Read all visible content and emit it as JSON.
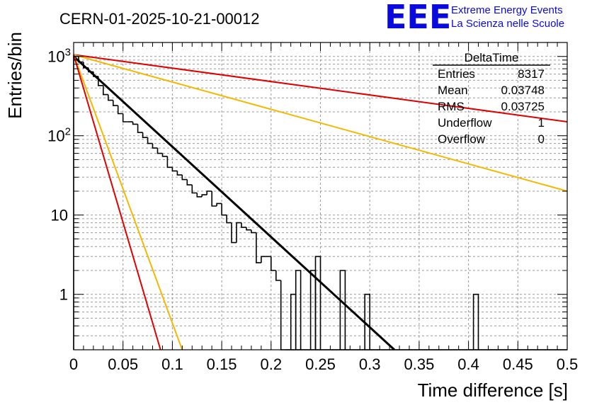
{
  "header": {
    "run_title": "CERN-01-2025-10-21-00012",
    "logo": "EEE",
    "brand_line1": "Extreme Energy Events",
    "brand_line2": "La Scienza nelle Scuole"
  },
  "stats_box": {
    "title": "DeltaTime",
    "rows": [
      {
        "label": "Entries",
        "value": "8317"
      },
      {
        "label": "Mean",
        "value": "0.03748"
      },
      {
        "label": "RMS",
        "value": "0.03725"
      },
      {
        "label": "Underflow",
        "value": "1"
      },
      {
        "label": "Overflow",
        "value": "0"
      }
    ]
  },
  "colors": {
    "histogram": "#000000",
    "fit": "#000000",
    "red_curves": "#e00000",
    "orange_curves": "#f5b800",
    "grid": "#9a9a9a",
    "logo": "#0a0adf"
  },
  "chart_data": {
    "type": "histogram",
    "title": "CERN-01-2025-10-21-00012",
    "xlabel": "Time difference [s]",
    "ylabel": "Entries/bin",
    "xlim": [
      0,
      0.5
    ],
    "ylim": [
      0.2,
      1500
    ],
    "yscale": "log",
    "grid": true,
    "xticks": [
      {
        "value": 0,
        "label": "0"
      },
      {
        "value": 0.05,
        "label": "0.05"
      },
      {
        "value": 0.1,
        "label": "0.1"
      },
      {
        "value": 0.15,
        "label": "0.15"
      },
      {
        "value": 0.2,
        "label": "0.2"
      },
      {
        "value": 0.25,
        "label": "0.25"
      },
      {
        "value": 0.3,
        "label": "0.3"
      },
      {
        "value": 0.35,
        "label": "0.35"
      },
      {
        "value": 0.4,
        "label": "0.4"
      },
      {
        "value": 0.45,
        "label": "0.45"
      },
      {
        "value": 0.5,
        "label": "0.5"
      }
    ],
    "yticks": [
      {
        "value": 1,
        "base": "1",
        "exp": ""
      },
      {
        "value": 10,
        "base": "10",
        "exp": ""
      },
      {
        "value": 100,
        "base": "10",
        "exp": "2"
      },
      {
        "value": 1000,
        "base": "10",
        "exp": "3"
      }
    ],
    "bin_width": 0.005,
    "histogram": {
      "name": "DeltaTime",
      "values": [
        1000,
        850,
        720,
        640,
        560,
        430,
        330,
        280,
        240,
        190,
        150,
        150,
        140,
        110,
        95,
        80,
        70,
        60,
        55,
        40,
        36,
        32,
        28,
        24,
        19,
        17,
        18,
        20,
        13,
        14,
        10,
        8,
        4.5,
        8,
        7,
        6.5,
        6,
        2.5,
        3,
        3,
        2,
        1.5,
        0.2,
        0.2,
        0,
        0,
        0,
        0,
        0,
        0,
        0,
        0,
        0,
        0,
        0,
        0,
        0,
        0,
        0,
        0,
        0,
        0,
        0,
        0,
        0,
        0,
        0,
        0,
        0,
        0,
        0,
        0,
        0,
        0,
        0,
        0,
        0,
        0,
        0,
        0,
        0,
        0,
        0,
        0,
        0,
        0,
        0,
        0,
        0,
        0,
        0,
        0,
        0,
        0,
        0,
        0,
        0,
        0,
        0,
        0
      ]
    },
    "spikes": [
      {
        "x": 0.22,
        "value": 1
      },
      {
        "x": 0.225,
        "value": 2
      },
      {
        "x": 0.24,
        "value": 2
      },
      {
        "x": 0.245,
        "value": 3
      },
      {
        "x": 0.27,
        "value": 2
      },
      {
        "x": 0.295,
        "value": 1
      },
      {
        "x": 0.405,
        "value": 1
      }
    ],
    "curves": [
      {
        "name": "fit",
        "color": "black",
        "x": [
          0,
          0.325
        ],
        "y": [
          1000,
          0.2
        ]
      },
      {
        "name": "red-slow",
        "color": "red",
        "x": [
          0,
          0.5
        ],
        "y": [
          1050,
          150
        ]
      },
      {
        "name": "orange-slow",
        "color": "orange",
        "x": [
          0,
          0.5
        ],
        "y": [
          1050,
          20
        ]
      },
      {
        "name": "orange-fast",
        "color": "orange",
        "x": [
          0,
          0.11
        ],
        "y": [
          1050,
          0.2
        ]
      },
      {
        "name": "red-fast",
        "color": "red",
        "x": [
          0,
          0.088
        ],
        "y": [
          1050,
          0.2
        ]
      }
    ]
  }
}
